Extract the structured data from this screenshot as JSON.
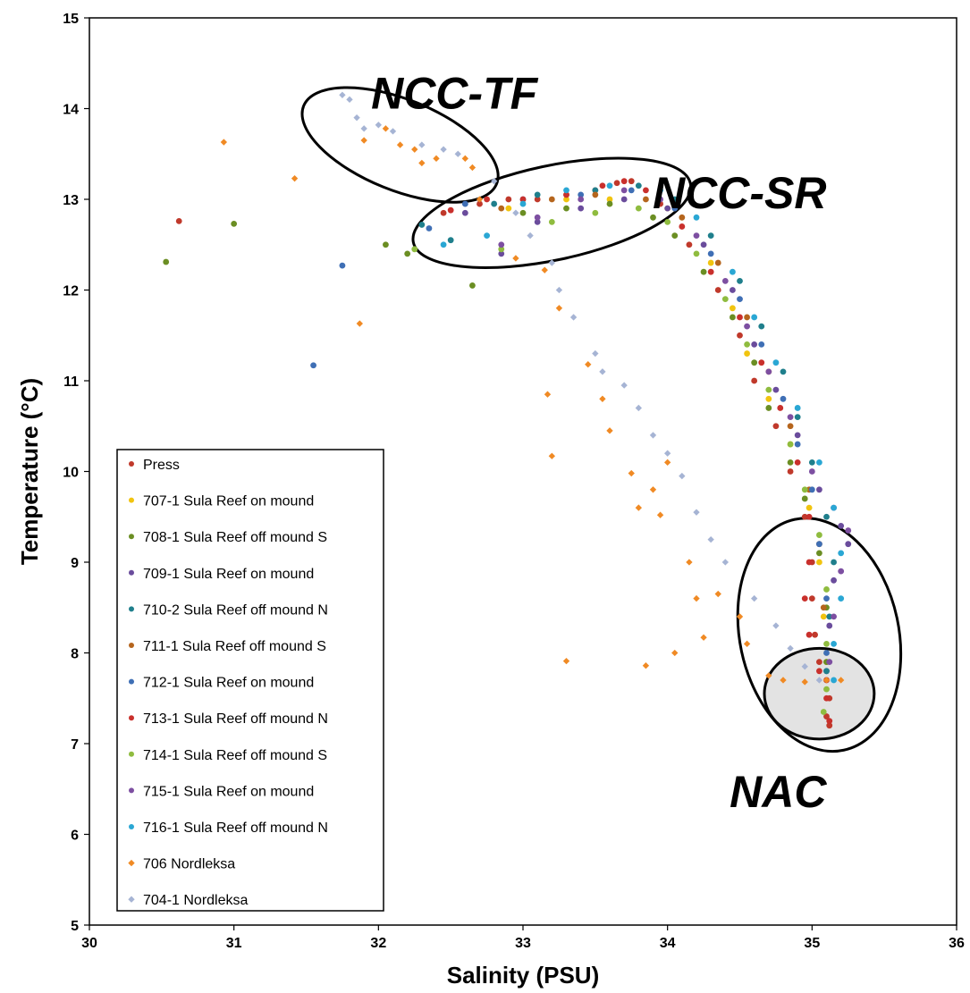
{
  "chart_data": {
    "type": "scatter",
    "xlabel": "Salinity (PSU)",
    "ylabel": "Temperature (°C)",
    "xlim": [
      30,
      36
    ],
    "ylim": [
      5,
      15
    ],
    "x_ticks": [
      30,
      31,
      32,
      33,
      34,
      35,
      36
    ],
    "y_ticks": [
      5,
      6,
      7,
      8,
      9,
      10,
      11,
      12,
      13,
      14,
      15
    ],
    "grid": false,
    "legend_position": "bottom-left",
    "annotations": [
      {
        "label": "NCC-TF",
        "anchor_x": 33.1,
        "anchor_y": 14.0
      },
      {
        "label": "NCC-SR",
        "anchor_x": 35.1,
        "anchor_y": 12.9
      },
      {
        "label": "NAC",
        "anchor_x": 35.1,
        "anchor_y": 6.3
      }
    ],
    "ellipses": [
      {
        "name": "NCC-TF",
        "cx": 32.15,
        "cy": 13.6,
        "rx": 0.72,
        "ry": 0.5,
        "rotate": 22,
        "fill": "none"
      },
      {
        "name": "NCC-SR",
        "cx": 33.2,
        "cy": 12.85,
        "rx": 0.98,
        "ry": 0.52,
        "rotate": -12,
        "fill": "none"
      },
      {
        "name": "NAC",
        "cx": 35.05,
        "cy": 8.2,
        "rx": 0.55,
        "ry": 1.3,
        "rotate": -12,
        "fill": "none"
      },
      {
        "name": "NAC-core",
        "cx": 35.05,
        "cy": 7.55,
        "rx": 0.38,
        "ry": 0.5,
        "rotate": 0,
        "fill": "#e3e3e3"
      }
    ],
    "series": [
      {
        "name": "Press",
        "color": "#c0392b",
        "marker": "circle",
        "points": [
          [
            30.62,
            12.76
          ],
          [
            32.45,
            12.85
          ],
          [
            32.7,
            12.95
          ],
          [
            32.9,
            13.0
          ],
          [
            33.1,
            13.0
          ],
          [
            33.3,
            13.05
          ],
          [
            33.5,
            13.1
          ],
          [
            33.65,
            13.18
          ],
          [
            33.75,
            13.2
          ],
          [
            33.95,
            12.95
          ],
          [
            34.15,
            12.5
          ],
          [
            34.35,
            12.0
          ],
          [
            34.5,
            11.5
          ],
          [
            34.6,
            11.0
          ],
          [
            34.75,
            10.5
          ],
          [
            34.85,
            10.0
          ],
          [
            34.95,
            9.5
          ],
          [
            35.0,
            9.0
          ],
          [
            35.0,
            8.6
          ],
          [
            35.02,
            8.2
          ],
          [
            35.05,
            7.9
          ],
          [
            35.1,
            7.7
          ],
          [
            35.12,
            7.5
          ],
          [
            35.1,
            7.3
          ],
          [
            35.12,
            7.2
          ]
        ]
      },
      {
        "name": "707-1 Sula Reef on mound",
        "color": "#f1c40f",
        "marker": "circle",
        "points": [
          [
            32.9,
            12.9
          ],
          [
            33.3,
            13.0
          ],
          [
            33.6,
            13.0
          ],
          [
            34.0,
            12.9
          ],
          [
            34.3,
            12.3
          ],
          [
            34.45,
            11.8
          ],
          [
            34.55,
            11.3
          ],
          [
            34.7,
            10.8
          ],
          [
            34.85,
            10.3
          ],
          [
            34.98,
            9.6
          ],
          [
            35.05,
            9.0
          ],
          [
            35.08,
            8.4
          ],
          [
            35.1,
            7.9
          ]
        ]
      },
      {
        "name": "708-1 Sula Reef off mound S",
        "color": "#6b8e23",
        "marker": "circle",
        "points": [
          [
            30.53,
            12.31
          ],
          [
            31.0,
            12.73
          ],
          [
            32.05,
            12.5
          ],
          [
            32.2,
            12.4
          ],
          [
            32.65,
            12.05
          ],
          [
            33.0,
            12.85
          ],
          [
            33.3,
            12.9
          ],
          [
            33.6,
            12.95
          ],
          [
            33.9,
            12.8
          ],
          [
            34.05,
            12.6
          ],
          [
            34.25,
            12.2
          ],
          [
            34.45,
            11.7
          ],
          [
            34.6,
            11.2
          ],
          [
            34.7,
            10.7
          ],
          [
            34.85,
            10.1
          ],
          [
            34.95,
            9.7
          ],
          [
            35.05,
            9.1
          ],
          [
            35.1,
            8.5
          ],
          [
            35.1,
            7.9
          ]
        ]
      },
      {
        "name": "709-1 Sula Reef on mound",
        "color": "#6a4c9c",
        "marker": "circle",
        "points": [
          [
            32.6,
            12.85
          ],
          [
            32.85,
            12.4
          ],
          [
            33.1,
            12.75
          ],
          [
            33.4,
            12.9
          ],
          [
            33.7,
            13.0
          ],
          [
            34.0,
            12.9
          ],
          [
            34.25,
            12.5
          ],
          [
            34.45,
            12.0
          ],
          [
            34.6,
            11.4
          ],
          [
            34.75,
            10.9
          ],
          [
            34.9,
            10.4
          ],
          [
            35.05,
            9.8
          ],
          [
            35.2,
            9.4
          ],
          [
            35.25,
            9.2
          ],
          [
            35.15,
            8.8
          ],
          [
            35.12,
            8.3
          ],
          [
            35.1,
            7.8
          ]
        ]
      },
      {
        "name": "710-2 Sula Reef off mound N",
        "color": "#1f7f8c",
        "marker": "circle",
        "points": [
          [
            32.3,
            12.72
          ],
          [
            32.5,
            12.55
          ],
          [
            32.8,
            12.95
          ],
          [
            33.1,
            13.05
          ],
          [
            33.5,
            13.1
          ],
          [
            33.8,
            13.15
          ],
          [
            34.05,
            13.0
          ],
          [
            34.3,
            12.6
          ],
          [
            34.5,
            12.1
          ],
          [
            34.65,
            11.6
          ],
          [
            34.8,
            11.1
          ],
          [
            34.9,
            10.6
          ],
          [
            35.0,
            10.1
          ],
          [
            35.1,
            9.5
          ],
          [
            35.15,
            9.0
          ],
          [
            35.12,
            8.4
          ],
          [
            35.1,
            7.8
          ]
        ]
      },
      {
        "name": "711-1 Sula Reef off mound S",
        "color": "#b5651d",
        "marker": "circle",
        "points": [
          [
            32.85,
            12.9
          ],
          [
            33.2,
            13.0
          ],
          [
            33.5,
            13.05
          ],
          [
            33.85,
            13.0
          ],
          [
            34.1,
            12.8
          ],
          [
            34.35,
            12.3
          ],
          [
            34.55,
            11.7
          ],
          [
            34.7,
            11.1
          ],
          [
            34.85,
            10.5
          ],
          [
            34.98,
            9.8
          ],
          [
            35.05,
            9.2
          ],
          [
            35.08,
            8.5
          ]
        ]
      },
      {
        "name": "712-1 Sula Reef on mound",
        "color": "#3f6fb5",
        "marker": "circle",
        "points": [
          [
            31.55,
            11.17
          ],
          [
            31.75,
            12.27
          ],
          [
            32.35,
            12.68
          ],
          [
            32.6,
            12.95
          ],
          [
            33.0,
            13.0
          ],
          [
            33.4,
            13.05
          ],
          [
            33.75,
            13.1
          ],
          [
            34.05,
            12.9
          ],
          [
            34.3,
            12.4
          ],
          [
            34.5,
            11.9
          ],
          [
            34.65,
            11.4
          ],
          [
            34.8,
            10.8
          ],
          [
            34.9,
            10.3
          ],
          [
            35.0,
            9.8
          ],
          [
            35.05,
            9.2
          ],
          [
            35.1,
            8.6
          ],
          [
            35.1,
            8.0
          ]
        ]
      },
      {
        "name": "713-1 Sula Reef off mound N",
        "color": "#c9302c",
        "marker": "circle",
        "points": [
          [
            32.5,
            12.88
          ],
          [
            32.75,
            13.0
          ],
          [
            33.0,
            13.0
          ],
          [
            33.3,
            13.05
          ],
          [
            33.55,
            13.15
          ],
          [
            33.7,
            13.2
          ],
          [
            33.85,
            13.1
          ],
          [
            34.1,
            12.7
          ],
          [
            34.3,
            12.2
          ],
          [
            34.5,
            11.7
          ],
          [
            34.65,
            11.2
          ],
          [
            34.78,
            10.7
          ],
          [
            34.9,
            10.1
          ],
          [
            34.98,
            9.5
          ],
          [
            34.98,
            9.0
          ],
          [
            34.95,
            8.6
          ],
          [
            34.98,
            8.2
          ],
          [
            35.05,
            7.8
          ],
          [
            35.1,
            7.5
          ],
          [
            35.12,
            7.25
          ]
        ]
      },
      {
        "name": "714-1 Sula Reef off mound S",
        "color": "#8fbc3f",
        "marker": "circle",
        "points": [
          [
            32.25,
            12.45
          ],
          [
            32.85,
            12.45
          ],
          [
            33.2,
            12.75
          ],
          [
            33.5,
            12.85
          ],
          [
            33.8,
            12.9
          ],
          [
            34.0,
            12.75
          ],
          [
            34.2,
            12.4
          ],
          [
            34.4,
            11.9
          ],
          [
            34.55,
            11.4
          ],
          [
            34.7,
            10.9
          ],
          [
            34.85,
            10.3
          ],
          [
            34.95,
            9.8
          ],
          [
            35.05,
            9.3
          ],
          [
            35.1,
            8.7
          ],
          [
            35.1,
            8.1
          ],
          [
            35.1,
            7.6
          ],
          [
            35.08,
            7.35
          ]
        ]
      },
      {
        "name": "715-1 Sula Reef on mound",
        "color": "#7d4fa1",
        "marker": "circle",
        "points": [
          [
            32.85,
            12.5
          ],
          [
            33.1,
            12.8
          ],
          [
            33.4,
            13.0
          ],
          [
            33.7,
            13.1
          ],
          [
            33.95,
            13.0
          ],
          [
            34.2,
            12.6
          ],
          [
            34.4,
            12.1
          ],
          [
            34.55,
            11.6
          ],
          [
            34.7,
            11.1
          ],
          [
            34.85,
            10.6
          ],
          [
            35.0,
            10.0
          ],
          [
            35.15,
            9.6
          ],
          [
            35.25,
            9.35
          ],
          [
            35.2,
            8.9
          ],
          [
            35.15,
            8.4
          ],
          [
            35.12,
            7.9
          ]
        ]
      },
      {
        "name": "716-1 Sula Reef off mound N",
        "color": "#2aa7d4",
        "marker": "circle",
        "points": [
          [
            32.45,
            12.5
          ],
          [
            32.75,
            12.6
          ],
          [
            33.0,
            12.95
          ],
          [
            33.3,
            13.1
          ],
          [
            33.6,
            13.15
          ],
          [
            33.95,
            13.1
          ],
          [
            34.2,
            12.8
          ],
          [
            34.45,
            12.2
          ],
          [
            34.6,
            11.7
          ],
          [
            34.75,
            11.2
          ],
          [
            34.9,
            10.7
          ],
          [
            35.05,
            10.1
          ],
          [
            35.15,
            9.6
          ],
          [
            35.2,
            9.1
          ],
          [
            35.2,
            8.6
          ],
          [
            35.15,
            8.1
          ],
          [
            35.15,
            7.7
          ]
        ]
      },
      {
        "name": "706 Nordleksa",
        "color": "#f08a24",
        "marker": "diamond",
        "points": [
          [
            30.93,
            13.63
          ],
          [
            31.42,
            13.23
          ],
          [
            31.87,
            11.63
          ],
          [
            31.9,
            13.65
          ],
          [
            32.05,
            13.78
          ],
          [
            32.15,
            13.6
          ],
          [
            32.25,
            13.55
          ],
          [
            32.3,
            13.4
          ],
          [
            32.4,
            13.45
          ],
          [
            32.6,
            13.45
          ],
          [
            32.65,
            13.35
          ],
          [
            32.7,
            13.0
          ],
          [
            32.95,
            12.35
          ],
          [
            33.15,
            12.22
          ],
          [
            33.17,
            10.85
          ],
          [
            33.2,
            10.17
          ],
          [
            33.25,
            11.8
          ],
          [
            33.3,
            7.91
          ],
          [
            33.45,
            11.18
          ],
          [
            33.55,
            10.8
          ],
          [
            33.6,
            10.45
          ],
          [
            33.75,
            9.98
          ],
          [
            33.8,
            9.6
          ],
          [
            33.85,
            7.86
          ],
          [
            33.9,
            9.8
          ],
          [
            33.95,
            9.52
          ],
          [
            34.0,
            10.1
          ],
          [
            34.05,
            8.0
          ],
          [
            34.15,
            9.0
          ],
          [
            34.2,
            8.6
          ],
          [
            34.25,
            8.17
          ],
          [
            34.35,
            8.65
          ],
          [
            34.5,
            8.4
          ],
          [
            34.55,
            8.1
          ],
          [
            34.7,
            7.75
          ],
          [
            34.8,
            7.7
          ],
          [
            34.95,
            7.68
          ],
          [
            35.1,
            7.7
          ],
          [
            35.2,
            7.7
          ]
        ]
      },
      {
        "name": "704-1 Nordleksa",
        "color": "#a6b4d4",
        "marker": "diamond",
        "points": [
          [
            31.75,
            14.15
          ],
          [
            31.8,
            14.1
          ],
          [
            31.85,
            13.9
          ],
          [
            31.9,
            13.78
          ],
          [
            32.0,
            13.82
          ],
          [
            32.1,
            13.75
          ],
          [
            32.3,
            13.6
          ],
          [
            32.45,
            13.55
          ],
          [
            32.55,
            13.5
          ],
          [
            32.8,
            13.2
          ],
          [
            32.95,
            12.85
          ],
          [
            33.05,
            12.6
          ],
          [
            33.2,
            12.3
          ],
          [
            33.25,
            12.0
          ],
          [
            33.35,
            11.7
          ],
          [
            33.5,
            11.3
          ],
          [
            33.55,
            11.1
          ],
          [
            33.7,
            10.95
          ],
          [
            33.8,
            10.7
          ],
          [
            33.9,
            10.4
          ],
          [
            34.0,
            10.2
          ],
          [
            34.1,
            9.95
          ],
          [
            34.2,
            9.55
          ],
          [
            34.3,
            9.25
          ],
          [
            34.4,
            9.0
          ],
          [
            34.6,
            8.6
          ],
          [
            34.75,
            8.3
          ],
          [
            34.85,
            8.05
          ],
          [
            34.95,
            7.85
          ],
          [
            35.05,
            7.7
          ]
        ]
      }
    ]
  }
}
